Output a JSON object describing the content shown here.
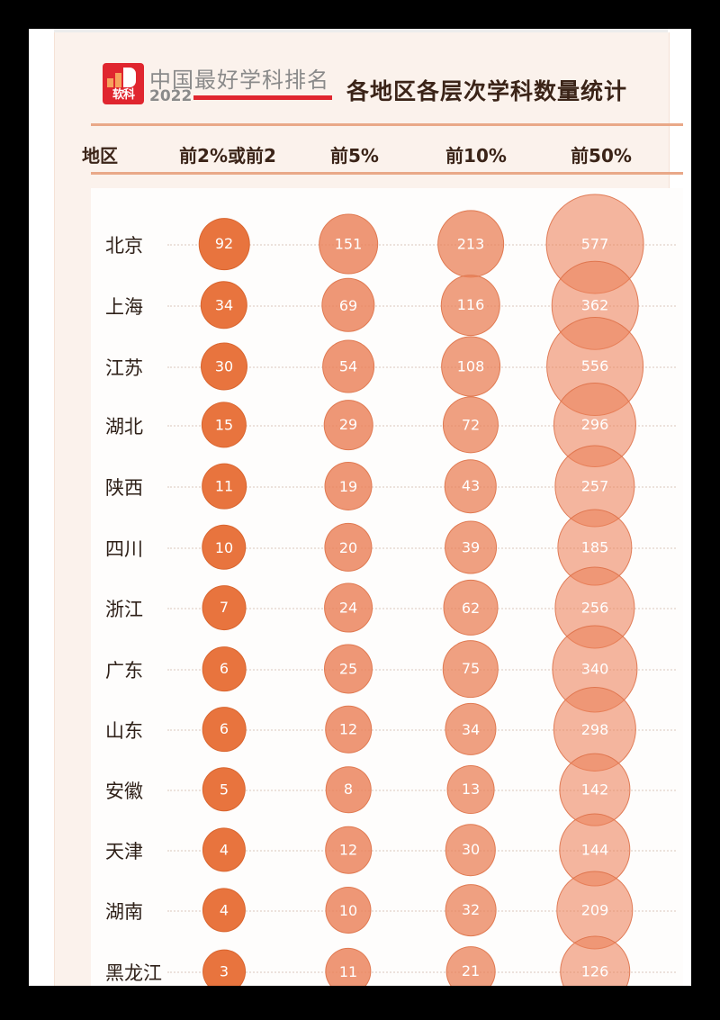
{
  "header": {
    "logo_text": "软科",
    "brand": "中国最好学科排名",
    "year": "2022",
    "title": "各地区各层次学科数量统计"
  },
  "columns": [
    "地区",
    "前2%或前2",
    "前5%",
    "前10%",
    "前50%"
  ],
  "colors": {
    "accent_red": "#e0262f",
    "bubble_dark": "#e8743e",
    "bubble_light": "#ec825a",
    "rule": "#e9a888",
    "background": "#fbf2ec"
  },
  "chart_data": {
    "type": "bubble-table",
    "title": "各地区各层次学科数量统计",
    "subtitle": "中国最好学科排名 2022",
    "categories": [
      "北京",
      "上海",
      "江苏",
      "湖北",
      "陕西",
      "四川",
      "浙江",
      "广东",
      "山东",
      "安徽",
      "天津",
      "湖南",
      "黑龙江"
    ],
    "series": [
      {
        "name": "前2%或前2",
        "values": [
          92,
          34,
          30,
          15,
          11,
          10,
          7,
          6,
          6,
          5,
          4,
          4,
          3
        ]
      },
      {
        "name": "前5%",
        "values": [
          151,
          69,
          54,
          29,
          19,
          20,
          24,
          25,
          12,
          8,
          12,
          10,
          11
        ]
      },
      {
        "name": "前10%",
        "values": [
          213,
          116,
          108,
          72,
          43,
          39,
          62,
          75,
          34,
          13,
          30,
          32,
          21
        ]
      },
      {
        "name": "前50%",
        "values": [
          577,
          362,
          556,
          296,
          257,
          185,
          256,
          340,
          298,
          142,
          144,
          209,
          126
        ]
      }
    ],
    "xlabel": "地区",
    "ylabel": "",
    "legend": "none",
    "grid": "dotted row guides"
  }
}
